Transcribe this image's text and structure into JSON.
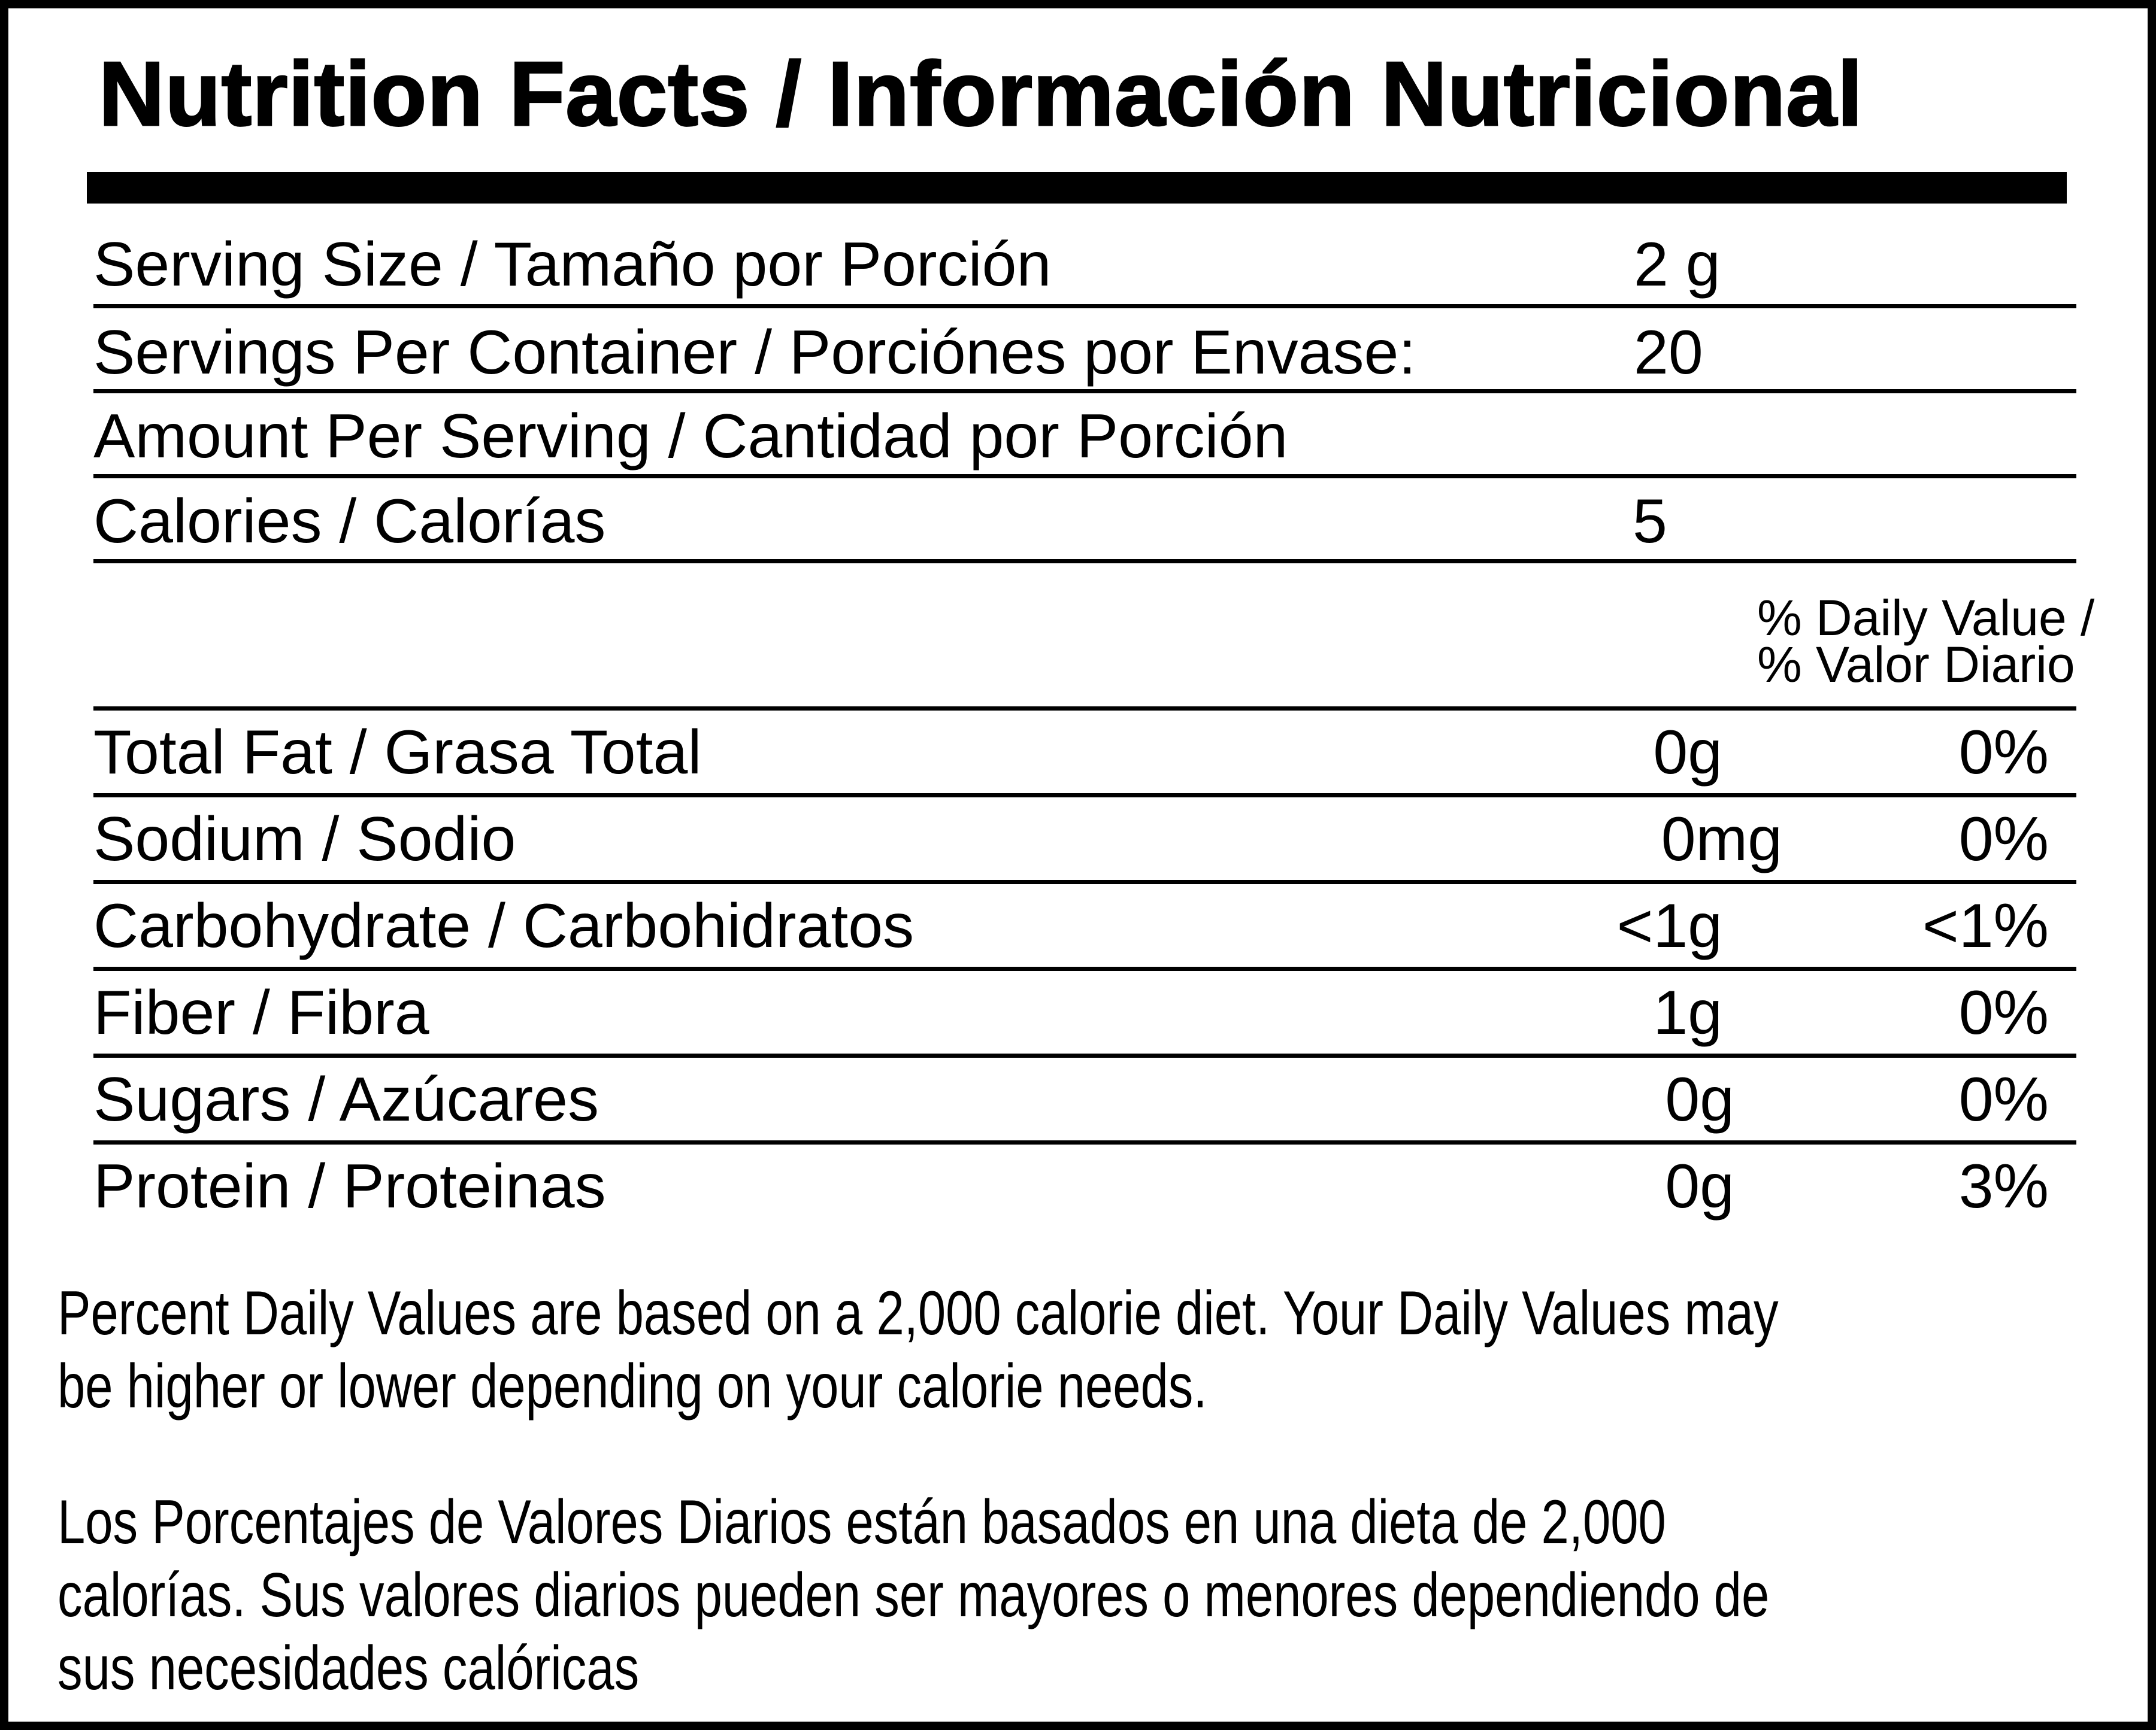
{
  "title": "Nutrition Facts / Información Nutricional",
  "serving": [
    {
      "label": "Serving Size / Tamaño por Porción",
      "value": "2 g"
    },
    {
      "label": "Servings Per Container / Porciónes por Envase:",
      "value": "20"
    },
    {
      "label": "Amount Per Serving / Cantidad por Porción",
      "value": ""
    },
    {
      "label": "Calories / Calorías",
      "value": "5"
    }
  ],
  "dv_header": [
    "% Daily Value /",
    "% Valor Diario"
  ],
  "nutrients": [
    {
      "label": "Total Fat / Grasa Total",
      "amount": "0g",
      "dv": "0%"
    },
    {
      "label": "Sodium / Sodio",
      "amount": "0mg",
      "dv": "0%"
    },
    {
      "label": "Carbohydrate / Carbohidratos",
      "amount": "<1g",
      "dv": "<1%"
    },
    {
      "label": "Fiber / Fibra",
      "amount": "1g",
      "dv": "0%"
    },
    {
      "label": "Sugars / Azúcares",
      "amount": "0g",
      "dv": "0%"
    },
    {
      "label": "Protein / Proteinas",
      "amount": "0g",
      "dv": "3%"
    }
  ],
  "footnote_en": [
    "Percent Daily Values are based on a 2,000 calorie diet. Your Daily Values may",
    "be higher or lower depending on your calorie needs."
  ],
  "footnote_es": [
    "Los Porcentajes de Valores Diarios están basados en una dieta de 2,000",
    "calorías. Sus valores diarios pueden ser mayores o menores dependiendo de",
    "sus necesidades calóricas"
  ]
}
